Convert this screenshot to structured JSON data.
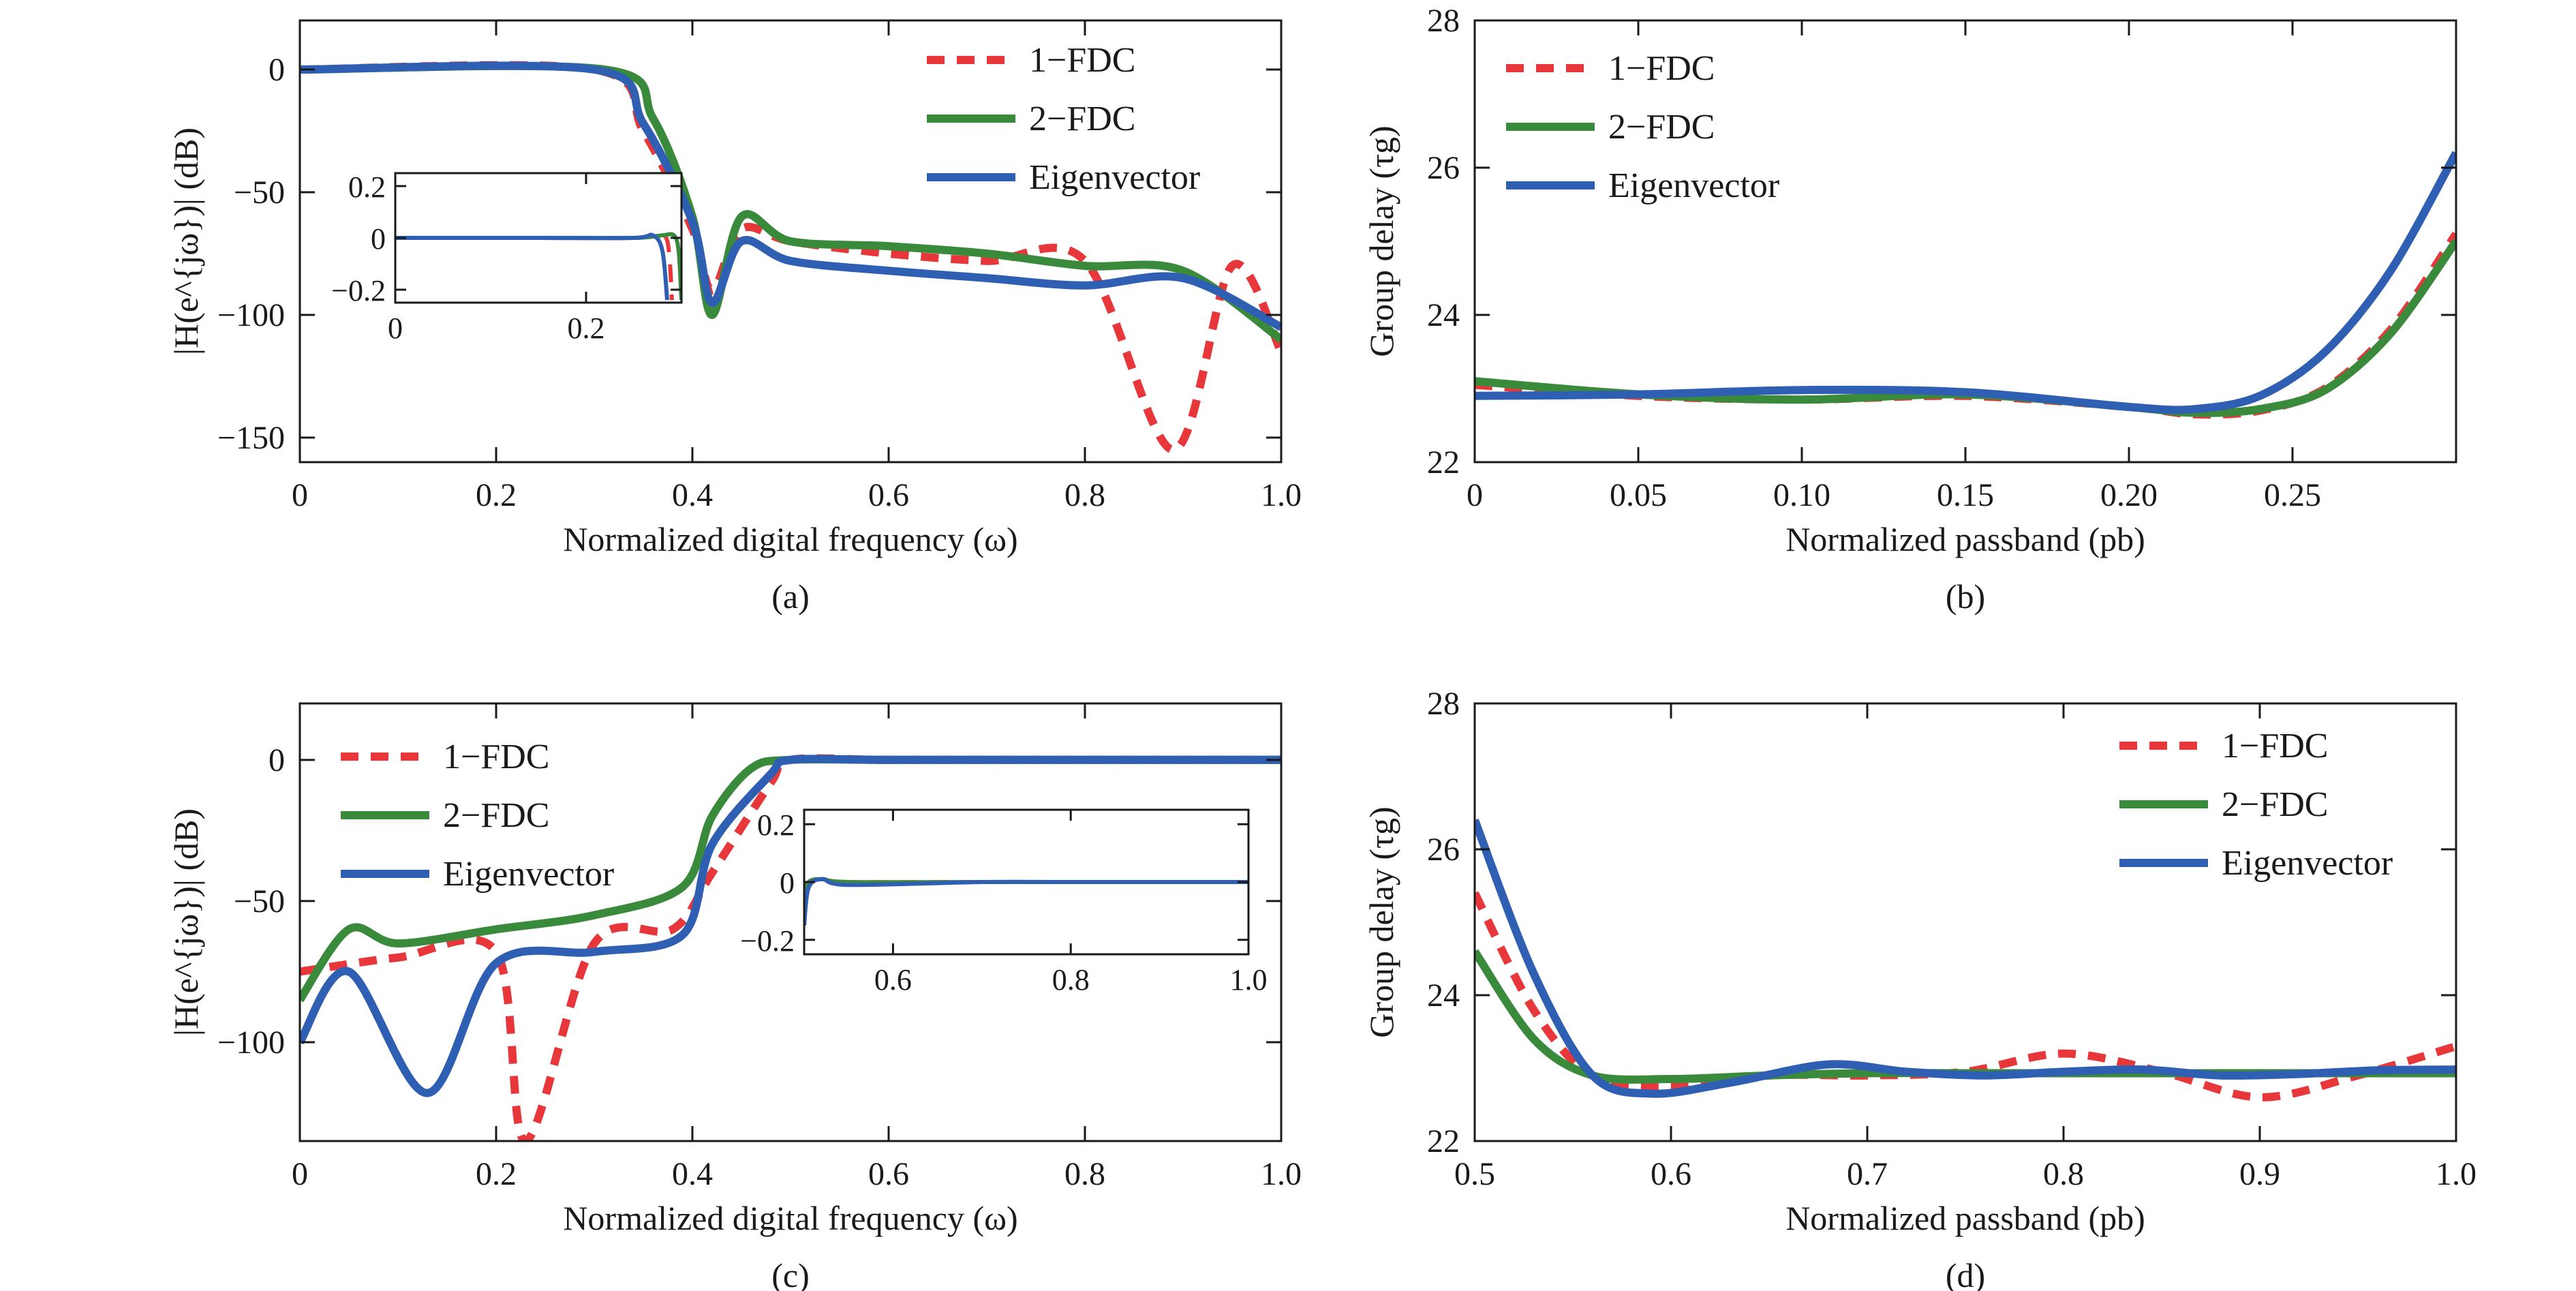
{
  "colors": {
    "fdc1": "#e8373a",
    "fdc2": "#3a8a3c",
    "eig": "#2e5fb3",
    "axis": "#1a1a1a"
  },
  "chart_data": [
    {
      "id": "a",
      "type": "line",
      "panel_label": "(a)",
      "xlabel": "Normalized digital frequency (ω)",
      "ylabel": "|H(e^{jω})| (dB)",
      "xlim": [
        0,
        1.0
      ],
      "ylim": [
        -160,
        20
      ],
      "xticks": [
        0,
        0.2,
        0.4,
        0.6,
        0.8,
        1.0
      ],
      "xtick_labels": [
        "0",
        "0.2",
        "0.4",
        "0.6",
        "0.8",
        "1.0"
      ],
      "yticks": [
        0,
        -50,
        -100,
        -150
      ],
      "ytick_labels": [
        "0",
        "−50",
        "−100",
        "−150"
      ],
      "legend": [
        "1−FDC",
        "2−FDC",
        "Eigenvector"
      ],
      "legend_position": "top-right",
      "series": [
        {
          "name": "1−FDC",
          "x": [
            0,
            0.3,
            0.35,
            0.4,
            0.42,
            0.45,
            0.5,
            0.6,
            0.7,
            0.8,
            0.89,
            0.95,
            1.0
          ],
          "y": [
            0,
            0,
            -25,
            -65,
            -90,
            -65,
            -70,
            -75,
            -78,
            -78,
            -155,
            -80,
            -115
          ]
        },
        {
          "name": "2−FDC",
          "x": [
            0,
            0.31,
            0.36,
            0.4,
            0.42,
            0.45,
            0.5,
            0.6,
            0.7,
            0.8,
            0.9,
            1.0
          ],
          "y": [
            0,
            0,
            -20,
            -60,
            -100,
            -60,
            -70,
            -72,
            -75,
            -80,
            -82,
            -110
          ]
        },
        {
          "name": "Eigenvector",
          "x": [
            0,
            0.3,
            0.35,
            0.4,
            0.42,
            0.45,
            0.5,
            0.6,
            0.7,
            0.8,
            0.9,
            1.0
          ],
          "y": [
            0,
            0,
            -22,
            -62,
            -95,
            -70,
            -78,
            -82,
            -85,
            -88,
            -85,
            -105
          ]
        }
      ],
      "inset": {
        "xlim": [
          0,
          0.3
        ],
        "ylim": [
          -0.25,
          0.25
        ],
        "xticks": [
          0,
          0.2
        ],
        "xtick_labels": [
          "0",
          "0.2"
        ],
        "yticks": [
          0.2,
          0,
          -0.2
        ],
        "ytick_labels": [
          "0.2",
          "0",
          "−0.2"
        ],
        "series": [
          {
            "name": "1−FDC",
            "x": [
              0,
              0.15,
              0.25,
              0.27,
              0.285,
              0.29
            ],
            "y": [
              0,
              0,
              0,
              0.01,
              -0.01,
              -0.24
            ]
          },
          {
            "name": "2−FDC",
            "x": [
              0,
              0.15,
              0.25,
              0.28,
              0.292,
              0.297,
              0.3
            ],
            "y": [
              0,
              0,
              0,
              0.01,
              0.01,
              -0.05,
              -0.24
            ]
          },
          {
            "name": "Eigenvector",
            "x": [
              0,
              0.15,
              0.25,
              0.27,
              0.28,
              0.285
            ],
            "y": [
              0,
              0,
              0,
              0.01,
              -0.05,
              -0.24
            ]
          }
        ]
      }
    },
    {
      "id": "b",
      "type": "line",
      "panel_label": "(b)",
      "xlabel": "Normalized passband (pb)",
      "ylabel": "Group delay (τg)",
      "xlim": [
        0,
        0.3
      ],
      "ylim": [
        22,
        28
      ],
      "xticks": [
        0,
        0.05,
        0.1,
        0.15,
        0.2,
        0.25
      ],
      "xtick_labels": [
        "0",
        "0.05",
        "0.10",
        "0.15",
        "0.20",
        "0.25"
      ],
      "yticks": [
        22,
        24,
        26,
        28
      ],
      "ytick_labels": [
        "22",
        "24",
        "26",
        "28"
      ],
      "legend": [
        "1−FDC",
        "2−FDC",
        "Eigenvector"
      ],
      "legend_position": "top-left",
      "series": [
        {
          "name": "1−FDC",
          "x": [
            0,
            0.05,
            0.1,
            0.15,
            0.2,
            0.22,
            0.24,
            0.26,
            0.28,
            0.3
          ],
          "y": [
            23.05,
            22.9,
            22.85,
            22.9,
            22.75,
            22.65,
            22.7,
            23.0,
            23.8,
            25.1
          ]
        },
        {
          "name": "2−FDC",
          "x": [
            0,
            0.05,
            0.1,
            0.15,
            0.2,
            0.22,
            0.24,
            0.26,
            0.28,
            0.3
          ],
          "y": [
            23.1,
            22.92,
            22.85,
            22.92,
            22.75,
            22.67,
            22.72,
            22.98,
            23.75,
            25.0
          ]
        },
        {
          "name": "Eigenvector",
          "x": [
            0,
            0.05,
            0.1,
            0.15,
            0.2,
            0.22,
            0.24,
            0.26,
            0.28,
            0.3
          ],
          "y": [
            22.9,
            22.92,
            22.98,
            22.95,
            22.75,
            22.72,
            22.9,
            23.5,
            24.6,
            26.2
          ]
        }
      ]
    },
    {
      "id": "c",
      "type": "line",
      "panel_label": "(c)",
      "xlabel": "Normalized digital frequency (ω)",
      "ylabel": "|H(e^{jω})| (dB)",
      "xlim": [
        0,
        1.0
      ],
      "ylim": [
        -135,
        20
      ],
      "xticks": [
        0,
        0.2,
        0.4,
        0.6,
        0.8,
        1.0
      ],
      "xtick_labels": [
        "0",
        "0.2",
        "0.4",
        "0.6",
        "0.8",
        "1.0"
      ],
      "yticks": [
        0,
        -50,
        -100
      ],
      "ytick_labels": [
        "0",
        "−50",
        "−100"
      ],
      "legend": [
        "1−FDC",
        "2−FDC",
        "Eigenvector"
      ],
      "legend_position": "top-left",
      "series": [
        {
          "name": "1−FDC",
          "x": [
            0,
            0.1,
            0.2,
            0.23,
            0.3,
            0.38,
            0.42,
            0.48,
            0.5,
            0.6,
            0.8,
            1.0
          ],
          "y": [
            -75,
            -70,
            -68,
            -135,
            -65,
            -60,
            -40,
            -8,
            0,
            0,
            0,
            0
          ]
        },
        {
          "name": "2−FDC",
          "x": [
            0,
            0.05,
            0.1,
            0.2,
            0.3,
            0.39,
            0.42,
            0.46,
            0.5,
            0.6,
            0.8,
            1.0
          ],
          "y": [
            -85,
            -60,
            -65,
            -60,
            -55,
            -45,
            -20,
            -3,
            0,
            0,
            0,
            0
          ]
        },
        {
          "name": "Eigenvector",
          "x": [
            0,
            0.05,
            0.13,
            0.2,
            0.3,
            0.39,
            0.42,
            0.48,
            0.5,
            0.6,
            0.8,
            1.0
          ],
          "y": [
            -100,
            -75,
            -118,
            -72,
            -68,
            -62,
            -30,
            -5,
            0,
            0,
            0,
            0
          ]
        }
      ],
      "inset": {
        "xlim": [
          0.5,
          1.0
        ],
        "ylim": [
          -0.25,
          0.25
        ],
        "xticks": [
          0.6,
          0.8,
          1.0
        ],
        "xtick_labels": [
          "0.6",
          "0.8",
          "1.0"
        ],
        "yticks": [
          0.2,
          0,
          -0.2
        ],
        "ytick_labels": [
          "0.2",
          "0",
          "−0.2"
        ],
        "series": [
          {
            "name": "1−FDC",
            "x": [
              0.5,
              0.505,
              0.52,
              0.55,
              0.7,
              0.8,
              1.0
            ],
            "y": [
              -0.1,
              -0.01,
              0.01,
              0,
              0,
              0,
              0
            ]
          },
          {
            "name": "2−FDC",
            "x": [
              0.5,
              0.505,
              0.52,
              0.55,
              0.7,
              0.8,
              1.0
            ],
            "y": [
              -0.05,
              0,
              0.01,
              0,
              0,
              0,
              0
            ]
          },
          {
            "name": "Eigenvector",
            "x": [
              0.5,
              0.505,
              0.52,
              0.55,
              0.7,
              0.8,
              1.0
            ],
            "y": [
              -0.15,
              -0.02,
              0.01,
              -0.01,
              0,
              0,
              0
            ]
          }
        ]
      }
    },
    {
      "id": "d",
      "type": "line",
      "panel_label": "(d)",
      "xlabel": "Normalized passband (pb)",
      "ylabel": "Group delay (τg)",
      "xlim": [
        0.5,
        1.0
      ],
      "ylim": [
        22,
        28
      ],
      "xticks": [
        0.5,
        0.6,
        0.7,
        0.8,
        0.9,
        1.0
      ],
      "xtick_labels": [
        "0.5",
        "0.6",
        "0.7",
        "0.8",
        "0.9",
        "1.0"
      ],
      "yticks": [
        22,
        24,
        26,
        28
      ],
      "ytick_labels": [
        "22",
        "24",
        "26",
        "28"
      ],
      "legend": [
        "1−FDC",
        "2−FDC",
        "Eigenvector"
      ],
      "legend_position": "top-right",
      "series": [
        {
          "name": "1−FDC",
          "x": [
            0.5,
            0.53,
            0.56,
            0.6,
            0.65,
            0.7,
            0.75,
            0.8,
            0.85,
            0.9,
            0.95,
            1.0
          ],
          "y": [
            25.4,
            23.8,
            22.9,
            22.75,
            22.9,
            22.9,
            22.95,
            23.2,
            22.95,
            22.6,
            22.9,
            23.3
          ]
        },
        {
          "name": "2−FDC",
          "x": [
            0.5,
            0.53,
            0.56,
            0.6,
            0.65,
            0.7,
            0.75,
            0.8,
            0.85,
            0.9,
            0.95,
            1.0
          ],
          "y": [
            24.6,
            23.4,
            22.9,
            22.85,
            22.9,
            22.93,
            22.93,
            22.93,
            22.93,
            22.93,
            22.93,
            22.93
          ]
        },
        {
          "name": "Eigenvector",
          "x": [
            0.5,
            0.53,
            0.56,
            0.59,
            0.63,
            0.68,
            0.72,
            0.76,
            0.8,
            0.84,
            0.88,
            0.92,
            0.96,
            1.0
          ],
          "y": [
            26.4,
            24.3,
            22.9,
            22.65,
            22.8,
            23.05,
            22.95,
            22.9,
            22.95,
            22.98,
            22.9,
            22.92,
            22.97,
            22.98
          ]
        }
      ]
    }
  ]
}
